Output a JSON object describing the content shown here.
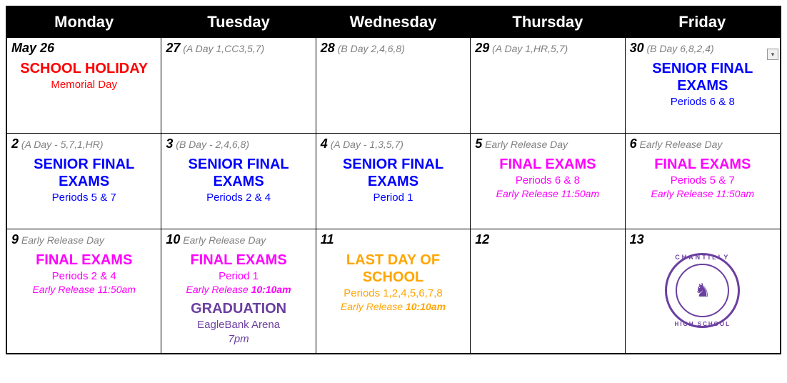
{
  "colors": {
    "header_bg": "#000000",
    "header_text": "#ffffff",
    "border": "#000000",
    "date_text": "#000000",
    "note_text": "#808080",
    "red": "#ff0000",
    "blue": "#0000ff",
    "magenta": "#ff00ff",
    "orange": "#ffa500",
    "purple": "#6b3fa0"
  },
  "typography": {
    "header_fontsize": 22,
    "date_fontsize": 18,
    "note_fontsize": 14,
    "event_title_fontsize": 20,
    "event_sub_fontsize": 15
  },
  "headers": [
    "Monday",
    "Tuesday",
    "Wednesday",
    "Thursday",
    "Friday"
  ],
  "cells": [
    {
      "date": "May 26",
      "note": "",
      "events": [
        {
          "title": "SCHOOL HOLIDAY",
          "color": "#ff0000",
          "sub": "Memorial Day",
          "sub_color": "#ff0000"
        }
      ]
    },
    {
      "date": "27",
      "note": "(A Day 1,CC3,5,7)",
      "events": []
    },
    {
      "date": "28",
      "note": "(B Day 2,4,6,8)",
      "events": []
    },
    {
      "date": "29",
      "note": "(A Day 1,HR,5,7)",
      "events": []
    },
    {
      "date": "30",
      "note": "(B Day 6,8,2,4)",
      "events": [
        {
          "title": "SENIOR FINAL EXAMS",
          "color": "#0000ff",
          "sub": "Periods 6 & 8",
          "sub_color": "#0000ff"
        }
      ]
    },
    {
      "date": "2",
      "note": "(A Day - 5,7,1,HR)",
      "events": [
        {
          "title": "SENIOR FINAL EXAMS",
          "color": "#0000ff",
          "sub": "Periods 5 & 7",
          "sub_color": "#0000ff"
        }
      ]
    },
    {
      "date": "3",
      "note": "(B Day - 2,4,6,8)",
      "events": [
        {
          "title": "SENIOR FINAL EXAMS",
          "color": "#0000ff",
          "sub": "Periods 2 & 4",
          "sub_color": "#0000ff"
        }
      ]
    },
    {
      "date": "4",
      "note": "(A Day - 1,3,5,7)",
      "events": [
        {
          "title": "SENIOR FINAL EXAMS",
          "color": "#0000ff",
          "sub": "Period 1",
          "sub_color": "#0000ff"
        }
      ]
    },
    {
      "date": "5",
      "note": "Early Release Day",
      "events": [
        {
          "title": "FINAL EXAMS",
          "color": "#ff00ff",
          "sub": "Periods 6 & 8",
          "sub_color": "#ff00ff",
          "sub2": "Early Release 11:50am",
          "sub2_color": "#ff00ff"
        }
      ]
    },
    {
      "date": "6",
      "note": "Early Release Day",
      "events": [
        {
          "title": "FINAL EXAMS",
          "color": "#ff00ff",
          "sub": "Periods 5 & 7",
          "sub_color": "#ff00ff",
          "sub2": "Early Release 11:50am",
          "sub2_color": "#ff00ff"
        }
      ]
    },
    {
      "date": "9",
      "note": "Early Release Day",
      "events": [
        {
          "title": "FINAL EXAMS",
          "color": "#ff00ff",
          "sub": "Periods 2 & 4",
          "sub_color": "#ff00ff",
          "sub2": "Early Release 11:50am",
          "sub2_color": "#ff00ff"
        }
      ]
    },
    {
      "date": "10",
      "note": "Early Release Day",
      "events": [
        {
          "title": "FINAL EXAMS",
          "color": "#ff00ff",
          "sub": "Period 1",
          "sub_color": "#ff00ff",
          "sub2_pre": "Early Release ",
          "sub2_bold": "10:10am",
          "sub2_color": "#ff00ff"
        },
        {
          "title": "GRADUATION",
          "color": "#6b3fa0",
          "sub": "EagleBank Arena",
          "sub_color": "#6b3fa0",
          "sub3": "7pm",
          "sub3_color": "#6b3fa0"
        }
      ]
    },
    {
      "date": "11",
      "note": "",
      "events": [
        {
          "title": "LAST DAY OF SCHOOL",
          "color": "#ffa500",
          "sub": "Periods 1,2,4,5,6,7,8",
          "sub_color": "#ffa500",
          "sub2_pre": "Early Release ",
          "sub2_bold": "10:10am",
          "sub2_color": "#ffa500"
        }
      ]
    },
    {
      "date": "12",
      "note": "",
      "events": []
    },
    {
      "date": "13",
      "note": "",
      "events": [],
      "logo": true
    }
  ],
  "logo": {
    "top_text": "CHANTILLY",
    "bottom_text": "HIGH SCHOOL",
    "center_glyph": "♞",
    "color": "#6b3fa0"
  }
}
